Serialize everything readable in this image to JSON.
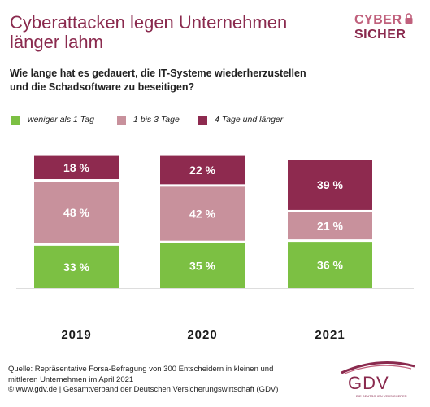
{
  "header": {
    "title_line1": "Cyberattacken legen Unternehmen",
    "title_line2": "länger lahm",
    "subtitle_line1": "Wie lange hat es gedauert, die IT-Systeme wiederherzustellen",
    "subtitle_line2": "und die Schadsoftware zu beseitigen?"
  },
  "logo": {
    "line1": "CYBER",
    "line2": "SICHER",
    "icon": "lock-icon"
  },
  "colors": {
    "green": "#7cc043",
    "pink": "#c8919c",
    "maroon": "#8e2a4f"
  },
  "chart_data": {
    "type": "bar",
    "stacked": true,
    "categories": [
      "2019",
      "2020",
      "2021"
    ],
    "series": [
      {
        "name": "weniger als 1 Tag",
        "color": "#7cc043",
        "values": [
          33,
          35,
          36
        ],
        "labels": [
          "33 %",
          "35 %",
          "36 %"
        ]
      },
      {
        "name": "1 bis 3 Tage",
        "color": "#c8919c",
        "values": [
          48,
          42,
          21
        ],
        "labels": [
          "48 %",
          "42 %",
          "21 %"
        ]
      },
      {
        "name": "4 Tage und länger",
        "color": "#8e2a4f",
        "values": [
          18,
          22,
          39
        ],
        "labels": [
          "18 %",
          "22 %",
          "39 %"
        ]
      }
    ],
    "ylim": [
      0,
      100
    ],
    "legend_position": "top",
    "grid": false
  },
  "footer": {
    "line1": "Quelle: Repräsentative Forsa-Befragung von 300 Entscheidern in kleinen und",
    "line2": "mittleren Unternehmen im April 2021",
    "line3": "© www.gdv.de | Gesamtverband der Deutschen Versicherungswirtschaft (GDV)"
  },
  "gdv_logo": {
    "text": "GDV",
    "tagline": "DIE DEUTSCHEN VERSICHERER"
  }
}
